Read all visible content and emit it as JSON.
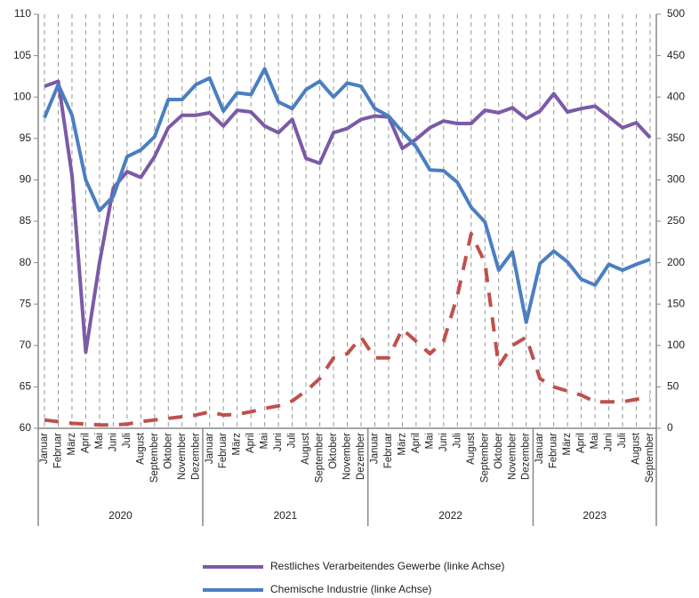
{
  "chart_data": {
    "type": "line",
    "categories": [
      "Januar",
      "Februar",
      "März",
      "April",
      "Mai",
      "Juni",
      "Juli",
      "August",
      "September",
      "Oktober",
      "November",
      "Dezember",
      "Januar",
      "Februar",
      "März",
      "April",
      "Mai",
      "Juni",
      "Juli",
      "August",
      "September",
      "Oktober",
      "November",
      "Dezember",
      "Januar",
      "Februar",
      "März",
      "April",
      "Mai",
      "Juni",
      "Juli",
      "August",
      "September",
      "Oktober",
      "November",
      "Dezember",
      "Januar",
      "Februar",
      "März",
      "April",
      "Mai",
      "Juni",
      "Juli",
      "August",
      "September"
    ],
    "year_groups": [
      {
        "label": "2020",
        "count": 12
      },
      {
        "label": "2021",
        "count": 12
      },
      {
        "label": "2022",
        "count": 12
      },
      {
        "label": "2023",
        "count": 9
      }
    ],
    "series": [
      {
        "name": "Restliches Verarbeitendes Gewerbe (linke Achse)",
        "color": "#7b5aa6",
        "axis": "y",
        "values": [
          101.3,
          101.9,
          90.5,
          69.2,
          80,
          89,
          91,
          90.3,
          92.8,
          96.3,
          97.8,
          97.8,
          98.1,
          96.5,
          98.4,
          98.2,
          96.5,
          95.7,
          97.3,
          92.6,
          92,
          95.7,
          96.2,
          97.3,
          97.7,
          97.6,
          93.8,
          94.9,
          96.3,
          97.1,
          96.8,
          96.8,
          98.4,
          98.1,
          98.7,
          97.4,
          98.3,
          100.4,
          98.2,
          98.6,
          98.9,
          97.6,
          96.3,
          96.9,
          95.1
        ]
      },
      {
        "name": "Chemische Industrie (linke Achse)",
        "color": "#4a7fc1",
        "axis": "y",
        "values": [
          97.5,
          101.5,
          97.8,
          90,
          86.3,
          88,
          92.8,
          93.6,
          95.2,
          99.7,
          99.7,
          101.5,
          102.3,
          98.3,
          100.5,
          100.3,
          103.4,
          99.4,
          98.6,
          100.9,
          101.9,
          100,
          101.7,
          101.3,
          98.6,
          97.7,
          95.8,
          94,
          91.2,
          91.1,
          89.7,
          86.7,
          84.9,
          79.1,
          81.3,
          72.8,
          79.9,
          81.4,
          80.1,
          78,
          77.3,
          79.8,
          79.1,
          79.8,
          80.4
        ]
      },
      {
        "color": "#c0504d",
        "axis": "y2",
        "dashed": true,
        "values": [
          10,
          8,
          6,
          5,
          4,
          4,
          5,
          8,
          10,
          12,
          14,
          16,
          20,
          16,
          17,
          20,
          24,
          27,
          33,
          45,
          60,
          85,
          90,
          110,
          85,
          85,
          120,
          105,
          90,
          105,
          160,
          235,
          200,
          75,
          100,
          110,
          60,
          50,
          45,
          40,
          32,
          32,
          32,
          35,
          38
        ]
      }
    ],
    "ylim": [
      60,
      110
    ],
    "yticks": [
      60,
      65,
      70,
      75,
      80,
      85,
      90,
      95,
      100,
      105,
      110
    ],
    "y2lim": [
      0,
      500
    ],
    "y2ticks": [
      0,
      50,
      100,
      150,
      200,
      250,
      300,
      350,
      400,
      450,
      500
    ],
    "grid": true
  }
}
